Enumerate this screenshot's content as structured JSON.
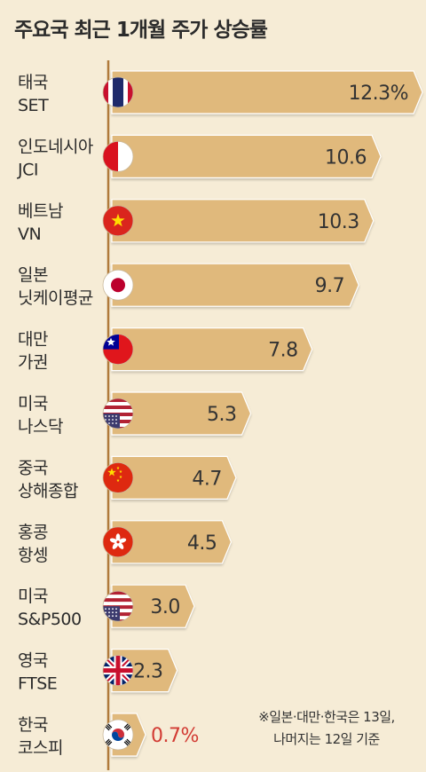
{
  "title": "주요국 최근 1개월 주가 상승률",
  "footnote": {
    "line1": "※일본·대만·한국은 13일,",
    "line2": "나머지는 12일 기준"
  },
  "colors": {
    "bar": "#e0b97b",
    "bar_edge": "#ffffff",
    "background": "#f6ecd6",
    "axis": "#b07a3b",
    "value_text": "#333333",
    "negative_highlight_text": "#d23b33"
  },
  "chart_data": {
    "type": "bar",
    "orientation": "horizontal",
    "title": "주요국 최근 1개월 주가 상승률",
    "unit": "%",
    "xlim": [
      0,
      12.3
    ],
    "grid": false,
    "legend": "none",
    "categories": [
      {
        "country": "태국",
        "index": "SET",
        "flag": "thailand-flag-icon",
        "value": 12.3,
        "label": "12.3%"
      },
      {
        "country": "인도네시아",
        "index": "JCI",
        "flag": "indonesia-flag-icon",
        "value": 10.6,
        "label": "10.6"
      },
      {
        "country": "베트남",
        "index": "VN",
        "flag": "vietnam-flag-icon",
        "value": 10.3,
        "label": "10.3"
      },
      {
        "country": "일본",
        "index": "닛케이평균",
        "flag": "japan-flag-icon",
        "value": 9.7,
        "label": "9.7"
      },
      {
        "country": "대만",
        "index": "가권",
        "flag": "taiwan-flag-icon",
        "value": 7.8,
        "label": "7.8"
      },
      {
        "country": "미국",
        "index": "나스닥",
        "flag": "usa-flag-icon",
        "value": 5.3,
        "label": "5.3"
      },
      {
        "country": "중국",
        "index": "상해종합",
        "flag": "china-flag-icon",
        "value": 4.7,
        "label": "4.7"
      },
      {
        "country": "홍콩",
        "index": "항셍",
        "flag": "hongkong-flag-icon",
        "value": 4.5,
        "label": "4.5"
      },
      {
        "country": "미국",
        "index": "S&P500",
        "flag": "usa-flag-icon",
        "value": 3.0,
        "label": "3.0"
      },
      {
        "country": "영국",
        "index": "FTSE",
        "flag": "uk-flag-icon",
        "value": 2.3,
        "label": "2.3"
      },
      {
        "country": "한국",
        "index": "코스피",
        "flag": "korea-flag-icon",
        "value": 0.7,
        "label": "0.7%"
      }
    ]
  }
}
